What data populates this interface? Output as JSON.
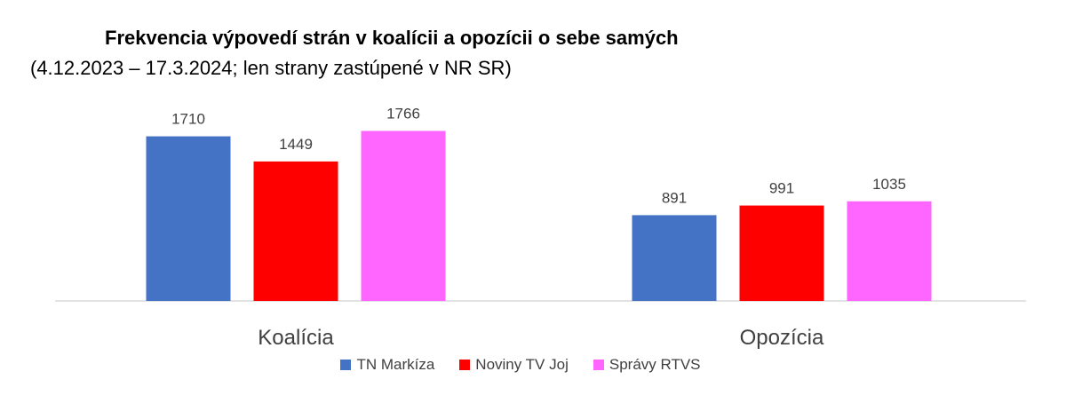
{
  "chart_data": {
    "type": "bar",
    "title": "Frekvencia výpovedí strán v koalícii a opozícii o sebe samých",
    "subtitle": "(4.12.2023 – 17.3.2024; len strany zastúpené v NR SR)",
    "categories": [
      "Koalícia",
      "Opozícia"
    ],
    "series": [
      {
        "name": "TN Markíza",
        "values": [
          1710,
          891
        ],
        "color": "#4472C4"
      },
      {
        "name": "Noviny TV Joj",
        "values": [
          1449,
          991
        ],
        "color": "#FF0000"
      },
      {
        "name": "Správy RTVS",
        "values": [
          1766,
          1035
        ],
        "color": "#FF66FF"
      }
    ],
    "ylim": [
      0,
      2000
    ],
    "data_labels": true,
    "grid": false,
    "legend_position": "bottom"
  }
}
